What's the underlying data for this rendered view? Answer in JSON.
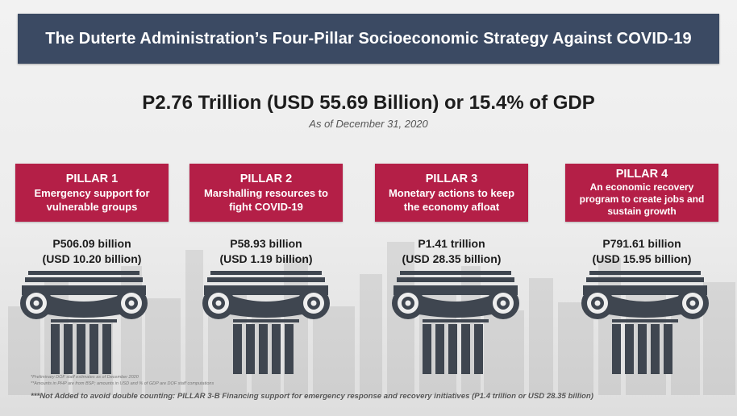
{
  "title": "The Duterte Administration’s Four-Pillar Socioeconomic Strategy Against COVID-19",
  "headline": "P2.76 Trillion (USD 55.69 Billion) or 15.4% of GDP",
  "as_of": "As of December 31, 2020",
  "pillars": [
    {
      "name": "PILLAR 1",
      "description": "Emergency support for vulnerable groups",
      "amount_php": "P506.09 billion",
      "amount_usd": "(USD 10.20 billion)"
    },
    {
      "name": "PILLAR 2",
      "description": "Marshalling resources to fight COVID-19",
      "amount_php": "P58.93 billion",
      "amount_usd": "(USD 1.19 billion)"
    },
    {
      "name": "PILLAR 3",
      "description": "Monetary actions to keep the economy afloat",
      "amount_php": "P1.41 trillion",
      "amount_usd": "(USD 28.35 billion)"
    },
    {
      "name": "PILLAR 4",
      "description": "An economic recovery program to create jobs and sustain growth",
      "amount_php": "P791.61 billion",
      "amount_usd": "(USD 15.95 billion)"
    }
  ],
  "footnotes": {
    "note1": "*Preliminary DOF staff estimates as of December 2020",
    "note2": "**Amounts in PHP are from BSP; amounts in USD and % of GDP are DOF staff computations",
    "note3": "***Not Added to avoid double counting: PILLAR 3-B Financing support for emergency response and recovery initiatives (P1.4 trillion or USD 28.35 billion)"
  },
  "colors": {
    "title_bar": "#3b4a63",
    "pillar_box": "#b41f47",
    "column": "#3f4650"
  },
  "icons": [
    "ionic-column-icon"
  ]
}
